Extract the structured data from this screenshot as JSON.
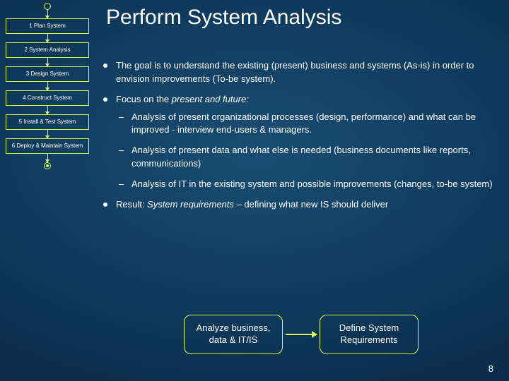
{
  "title": "Perform System Analysis",
  "pagenum": "8",
  "flow": {
    "border_color": "#d7ff4a",
    "active_index": 1,
    "steps": [
      "1 Plan System",
      "2 System Analysis",
      "3 Design System",
      "4 Construct System",
      "5 Install & Test System",
      "6 Deploy & Maintain System"
    ]
  },
  "bullets": {
    "b0": "The goal is to understand the existing (present) business and systems (As-is) in order to envision improvements (To-be system).",
    "b1_lead": "Focus on the ",
    "b1_ital": "present and future:",
    "b1_sub0": "Analysis of present organizational processes (design, performance) and what can be improved - interview end-users & managers.",
    "b1_sub1": "Analysis of present data and what else is needed (business documents like reports, communications)",
    "b1_sub2": "Analysis of IT in the existing system and possible improvements (changes, to-be system)",
    "b2_lead": "Result: ",
    "b2_ital": "System requirements",
    "b2_tail": " – defining what new IS should deliver"
  },
  "proc": {
    "left": "Analyze business, data & IT/IS",
    "right": "Define System Requirements"
  }
}
